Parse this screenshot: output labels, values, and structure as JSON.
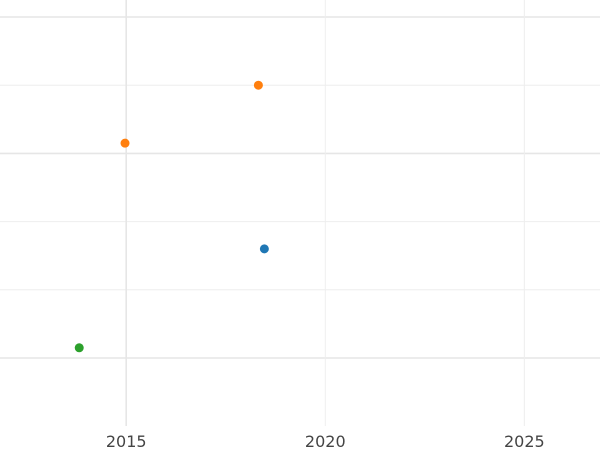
{
  "chart_data": {
    "type": "scatter",
    "title": "",
    "xlabel": "",
    "ylabel": "",
    "xlim": [
      2011.83,
      2026.9
    ],
    "ylim": [
      -0.9,
      5.26
    ],
    "x_ticks": [
      2015,
      2020,
      2025
    ],
    "x_tick_labels": [
      "2015",
      "2020",
      "2025"
    ],
    "y_gridlines": [
      0,
      1,
      2,
      3,
      4,
      5
    ],
    "y_major_gridlines": [
      0,
      3,
      5
    ],
    "grid": true,
    "points": [
      {
        "x": 2013.82,
        "y": 0.15,
        "color": "#2ca02c"
      },
      {
        "x": 2014.97,
        "y": 3.15,
        "color": "#ff7f0e"
      },
      {
        "x": 2018.32,
        "y": 4.0,
        "color": "#ff7f0e"
      },
      {
        "x": 2018.47,
        "y": 1.6,
        "color": "#1f77b4"
      }
    ]
  }
}
